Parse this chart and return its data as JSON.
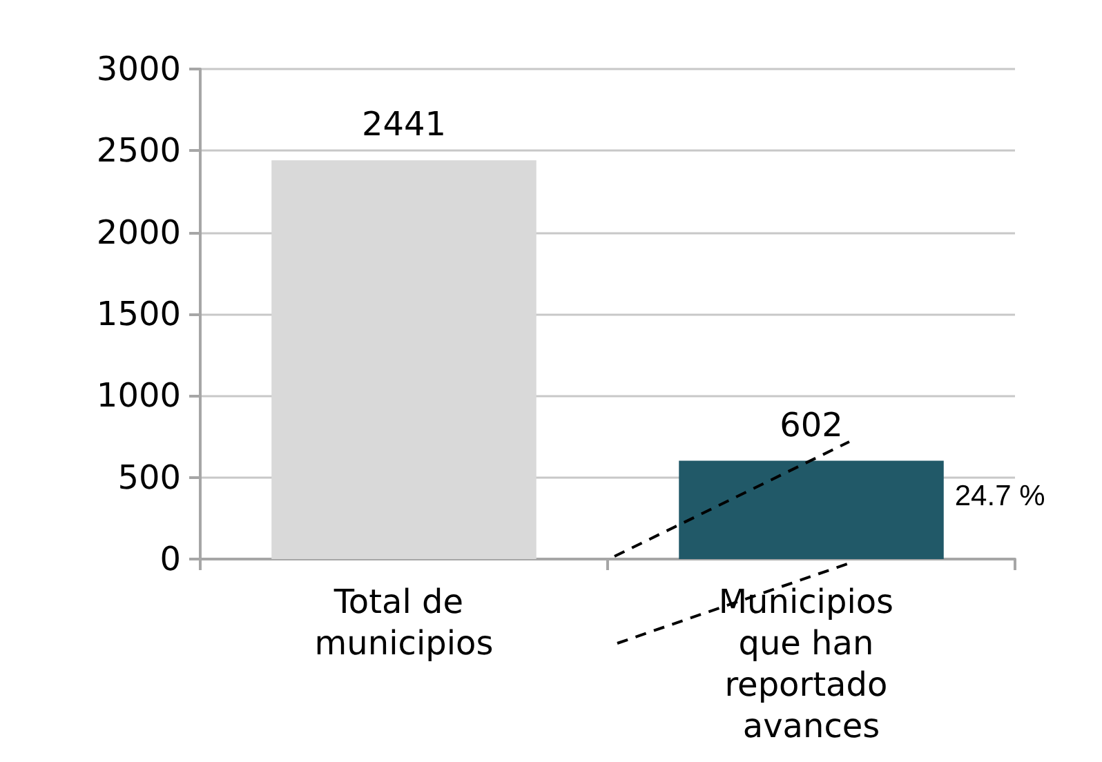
{
  "chart_data": {
    "type": "bar",
    "categories": [
      "Total de municipios",
      "Municipios que han reportado avances"
    ],
    "values": [
      2441,
      602
    ],
    "colors": [
      "#d9d9d9",
      "#215968"
    ],
    "ylim": [
      0,
      3000
    ],
    "yticks": [
      0,
      500,
      1000,
      1500,
      2000,
      2500,
      3000
    ],
    "grid": "y",
    "data_labels": true,
    "annotations": [
      "24.7 %"
    ]
  }
}
